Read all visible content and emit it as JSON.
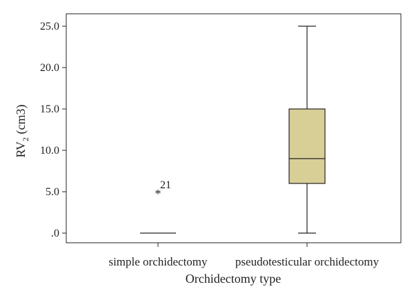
{
  "chart_data": {
    "type": "box",
    "xlabel": "Orchidectomy type",
    "ylabel": {
      "base": "RV",
      "subscript": "2",
      "suffix": " (cm3)"
    },
    "ylim": [
      0,
      25
    ],
    "y_ticks": [
      {
        "value": 0,
        "label": ".0"
      },
      {
        "value": 5,
        "label": "5.0"
      },
      {
        "value": 10,
        "label": "10.0"
      },
      {
        "value": 15,
        "label": "15.0"
      },
      {
        "value": 20,
        "label": "20.0"
      },
      {
        "value": 25,
        "label": "25.0"
      }
    ],
    "categories": [
      "simple orchidectomy",
      "pseudotesticular orchidectomy"
    ],
    "boxes": [
      {
        "category": "simple orchidectomy",
        "min": 0,
        "q1": 0,
        "median": 0,
        "q3": 0,
        "max": 0,
        "outliers": [
          {
            "value": 5,
            "marker": "*",
            "label": "21"
          }
        ]
      },
      {
        "category": "pseudotesticular orchidectomy",
        "min": 0,
        "q1": 6,
        "median": 9,
        "q3": 15,
        "max": 25,
        "outliers": []
      }
    ],
    "grid": false,
    "legend": "none"
  },
  "colors": {
    "box_fill": "#d8cf97",
    "line": "#222222",
    "frame": "#222222"
  }
}
